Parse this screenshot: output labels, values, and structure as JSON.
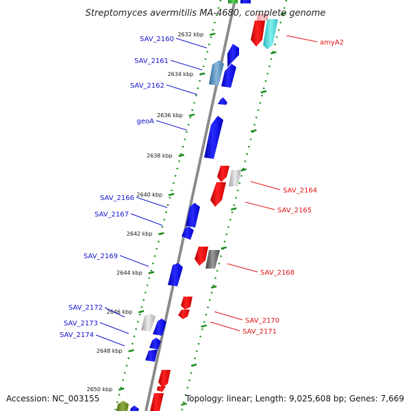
{
  "title": "Streptomyces avermitilis MA-4680, complete genome",
  "footer": {
    "accession": "Accession: NC_003155",
    "summary": "Topology: linear; Length: 9,025,608 bp; Genes: 7,669"
  },
  "colors": {
    "forward_label": "#1010cc",
    "reverse_label": "#dd1111",
    "tick": "#1a8a1a",
    "backbone": "#8a8a8a"
  },
  "kbp_ticks": [
    {
      "text": "2632 kbp",
      "kbp": 2632
    },
    {
      "text": "2634 kbp",
      "kbp": 2634
    },
    {
      "text": "2636 kbp",
      "kbp": 2636
    },
    {
      "text": "2638 kbp",
      "kbp": 2638
    },
    {
      "text": "2640 kbp",
      "kbp": 2640
    },
    {
      "text": "2642 kbp",
      "kbp": 2642
    },
    {
      "text": "2644 kbp",
      "kbp": 2644
    },
    {
      "text": "2646 kbp",
      "kbp": 2646
    },
    {
      "text": "2648 kbp",
      "kbp": 2648
    },
    {
      "text": "2650 kbp",
      "kbp": 2650
    }
  ],
  "forward_labels": [
    {
      "text": "SAV_2160"
    },
    {
      "text": "SAV_2161"
    },
    {
      "text": "SAV_2162"
    },
    {
      "text": "geoA"
    },
    {
      "text": "SAV_2166"
    },
    {
      "text": "SAV_2167"
    },
    {
      "text": "SAV_2169"
    },
    {
      "text": "SAV_2172"
    },
    {
      "text": "SAV_2173"
    },
    {
      "text": "SAV_2174"
    }
  ],
  "reverse_labels": [
    {
      "text": "amyA2"
    },
    {
      "text": "SAV_2164"
    },
    {
      "text": "SAV_2165"
    },
    {
      "text": "SAV_2168"
    },
    {
      "text": "SAV_2170"
    },
    {
      "text": "SAV_2171"
    }
  ]
}
